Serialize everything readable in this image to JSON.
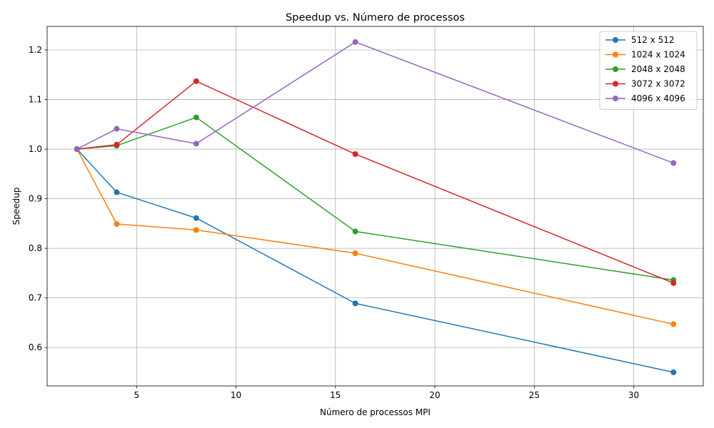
{
  "chart_data": {
    "type": "line",
    "title": "Speedup vs. Número de processos",
    "xlabel": "Número de processos MPI",
    "ylabel": "Speedup",
    "x": [
      2,
      4,
      8,
      16,
      32
    ],
    "xlim": [
      0.5,
      33.5
    ],
    "ylim": [
      0.5225,
      1.2475
    ],
    "xticks": [
      5,
      10,
      15,
      20,
      25,
      30
    ],
    "yticks": [
      0.6,
      0.7,
      0.8,
      0.9,
      1.0,
      1.1,
      1.2
    ],
    "xtick_labels": [
      "5",
      "10",
      "15",
      "20",
      "25",
      "30"
    ],
    "ytick_labels": [
      "0.6",
      "0.7",
      "0.8",
      "0.9",
      "1.0",
      "1.1",
      "1.2"
    ],
    "grid": true,
    "legend_position": "top-right",
    "series": [
      {
        "name": "512 x 512",
        "color": "#1f77b4",
        "values": [
          1.0,
          0.913,
          0.861,
          0.689,
          0.55
        ]
      },
      {
        "name": "1024 x 1024",
        "color": "#ff7f0e",
        "values": [
          1.0,
          0.849,
          0.837,
          0.79,
          0.647
        ]
      },
      {
        "name": "2048 x 2048",
        "color": "#2ca02c",
        "values": [
          1.0,
          1.007,
          1.064,
          0.834,
          0.736
        ]
      },
      {
        "name": "3072 x 3072",
        "color": "#d62728",
        "values": [
          1.0,
          1.009,
          1.137,
          0.99,
          0.73
        ]
      },
      {
        "name": "4096 x 4096",
        "color": "#9467bd",
        "values": [
          1.0,
          1.041,
          1.011,
          1.216,
          0.972
        ]
      }
    ]
  }
}
